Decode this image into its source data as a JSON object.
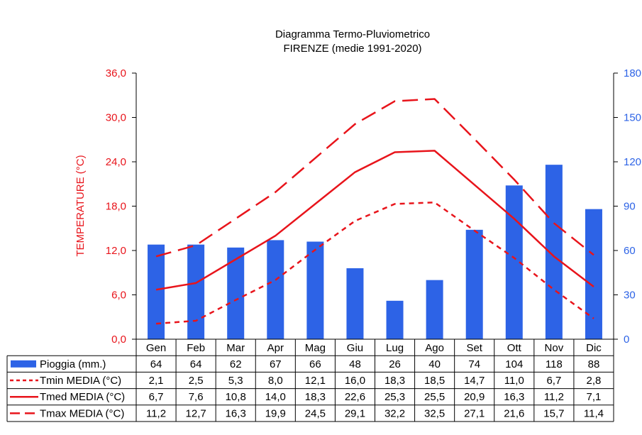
{
  "chart_data": {
    "type": "bar+line",
    "title": "Diagramma Termo-Pluviometrico",
    "subtitle": "FIRENZE (medie 1991-2020)",
    "ylabel": "TEMPERATURE (°C)",
    "categories": [
      "Gen",
      "Feb",
      "Mar",
      "Apr",
      "Mag",
      "Giu",
      "Lug",
      "Ago",
      "Set",
      "Ott",
      "Nov",
      "Dic"
    ],
    "y_left": {
      "ylim": [
        0,
        36
      ],
      "ticks": [
        "0,0",
        "6,0",
        "12,0",
        "18,0",
        "24,0",
        "30,0",
        "36,0"
      ],
      "color": "#e8141b"
    },
    "y_right": {
      "ylim": [
        0,
        180
      ],
      "ticks": [
        "0",
        "30",
        "60",
        "90",
        "120",
        "150",
        "180"
      ],
      "color": "#2d63e6"
    },
    "series": [
      {
        "name": "Pioggia (mm.)",
        "kind": "bar",
        "axis": "right",
        "color": "#2d63e6",
        "values": [
          64,
          64,
          62,
          67,
          66,
          48,
          26,
          40,
          74,
          104,
          118,
          88
        ],
        "labels": [
          "64",
          "64",
          "62",
          "67",
          "66",
          "48",
          "26",
          "40",
          "74",
          "104",
          "118",
          "88"
        ]
      },
      {
        "name": "Tmin MEDIA (°C)",
        "kind": "line",
        "style": "dotted",
        "axis": "left",
        "color": "#e8141b",
        "values": [
          2.1,
          2.5,
          5.3,
          8.0,
          12.1,
          16.0,
          18.3,
          18.5,
          14.7,
          11.0,
          6.7,
          2.8
        ],
        "labels": [
          "2,1",
          "2,5",
          "5,3",
          "8,0",
          "12,1",
          "16,0",
          "18,3",
          "18,5",
          "14,7",
          "11,0",
          "6,7",
          "2,8"
        ]
      },
      {
        "name": "Tmed MEDIA (°C)",
        "kind": "line",
        "style": "solid",
        "axis": "left",
        "color": "#e8141b",
        "values": [
          6.7,
          7.6,
          10.8,
          14.0,
          18.3,
          22.6,
          25.3,
          25.5,
          20.9,
          16.3,
          11.2,
          7.1
        ],
        "labels": [
          "6,7",
          "7,6",
          "10,8",
          "14,0",
          "18,3",
          "22,6",
          "25,3",
          "25,5",
          "20,9",
          "16,3",
          "11,2",
          "7,1"
        ]
      },
      {
        "name": "Tmax MEDIA (°C)",
        "kind": "line",
        "style": "dashed",
        "axis": "left",
        "color": "#e8141b",
        "values": [
          11.2,
          12.7,
          16.3,
          19.9,
          24.5,
          29.1,
          32.2,
          32.5,
          27.1,
          21.6,
          15.7,
          11.4
        ],
        "labels": [
          "11,2",
          "12,7",
          "16,3",
          "19,9",
          "24,5",
          "29,1",
          "32,2",
          "32,5",
          "27,1",
          "21,6",
          "15,7",
          "11,4"
        ]
      }
    ],
    "legend": "data-table-below"
  }
}
